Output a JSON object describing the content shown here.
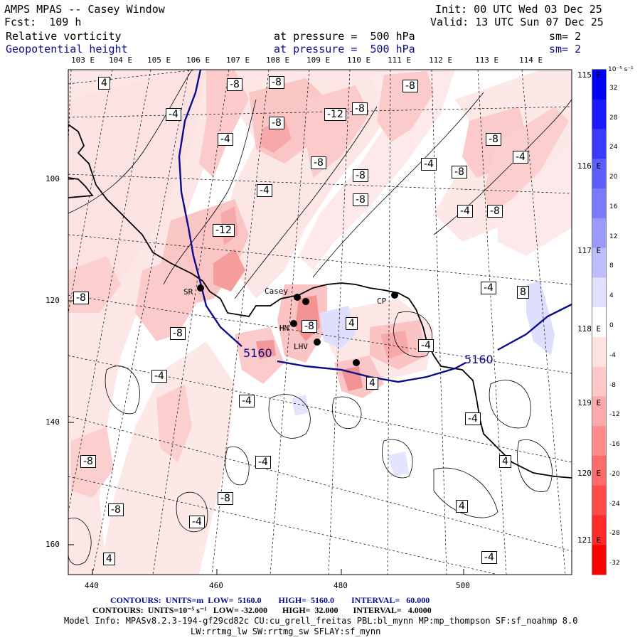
{
  "header": {
    "title": "AMPS MPAS -- Casey Window",
    "forecast": "Fcst:  109 h",
    "init": "Init: 00 UTC Wed 03 Dec 25",
    "valid": "Valid: 13 UTC Sun 07 Dec 25",
    "field1": {
      "name": "Relative vorticity",
      "level": "at pressure =  500 hPa",
      "smooth": "sm= 2"
    },
    "field2": {
      "name": "Geopotential height",
      "level": "at pressure =  500 hPa",
      "smooth": "sm= 2"
    }
  },
  "map": {
    "lon_labels_top": [
      "103 E",
      "104 E",
      "105 E",
      "106 E",
      "107 E",
      "108 E",
      "109 E",
      "110 E",
      "111 E",
      "112 E",
      "113 E",
      "114 E"
    ],
    "lon_labels_right": [
      "115 E",
      "116 E",
      "117 E",
      "118 E",
      "119 E",
      "120 E",
      "121 E"
    ],
    "x_ticks": [
      "440",
      "460",
      "480",
      "500"
    ],
    "y_ticks": [
      "100",
      "120",
      "140",
      "160"
    ],
    "stations": [
      {
        "name": "SR"
      },
      {
        "name": "Casey"
      },
      {
        "name": "CP"
      },
      {
        "name": "HN"
      },
      {
        "name": "LHV"
      }
    ],
    "height_contour_label": "5160",
    "vorticity_labels": [
      "4",
      "-8",
      "-8",
      "-8",
      "-4",
      "-12",
      "-8",
      "-8",
      "-4",
      "-8",
      "-8",
      "-4",
      "-8",
      "-4",
      "-8",
      "-4",
      "-8",
      "-4",
      "-8",
      "-12",
      "-4",
      "8",
      "-8",
      "-8",
      "4",
      "-4",
      "-8",
      "4",
      "-4",
      "-4",
      "-4",
      "-8",
      "4",
      "4",
      "-4",
      "-8",
      "-8",
      "-4",
      "4",
      "-4",
      "-8"
    ]
  },
  "colorbar": {
    "units": "10⁻⁵ s⁻¹",
    "labels": [
      "32",
      "28",
      "24",
      "20",
      "16",
      "12",
      "8",
      "4",
      "0",
      "-4",
      "-8",
      "-12",
      "-16",
      "-20",
      "-24",
      "-28",
      "-32"
    ],
    "colors": [
      "#0000ff",
      "#1a1aff",
      "#3a3aff",
      "#5c5cff",
      "#7a7aff",
      "#9999ff",
      "#bdbdff",
      "#e0e0ff",
      "#ffffff",
      "#ffe3e3",
      "#ffc8c8",
      "#ffaaaa",
      "#ff8a8a",
      "#ff6a6a",
      "#ff4a4a",
      "#ff2a2a",
      "#ff0000"
    ]
  },
  "footer": {
    "contours1": "CONTOURS:  UNITS=m  LOW=  5160.0        HIGH=  5160.0        INTERVAL=   60.000",
    "contours2": "CONTOURS:  UNITS=10⁻⁵ s⁻¹   LOW= -32.000       HIGH=  32.000       INTERVAL=   4.0000",
    "model_info1": "Model Info: MPASv8.2.3-194-gf29cd82c CU:cu_grell_freitas PBL:bl_mynn MP:mp_thompson SF:sf_noahmp 8.0",
    "model_info2": "LW:rrtmg_lw SW:rrtmg_sw SFLAY:sf_mynn"
  }
}
